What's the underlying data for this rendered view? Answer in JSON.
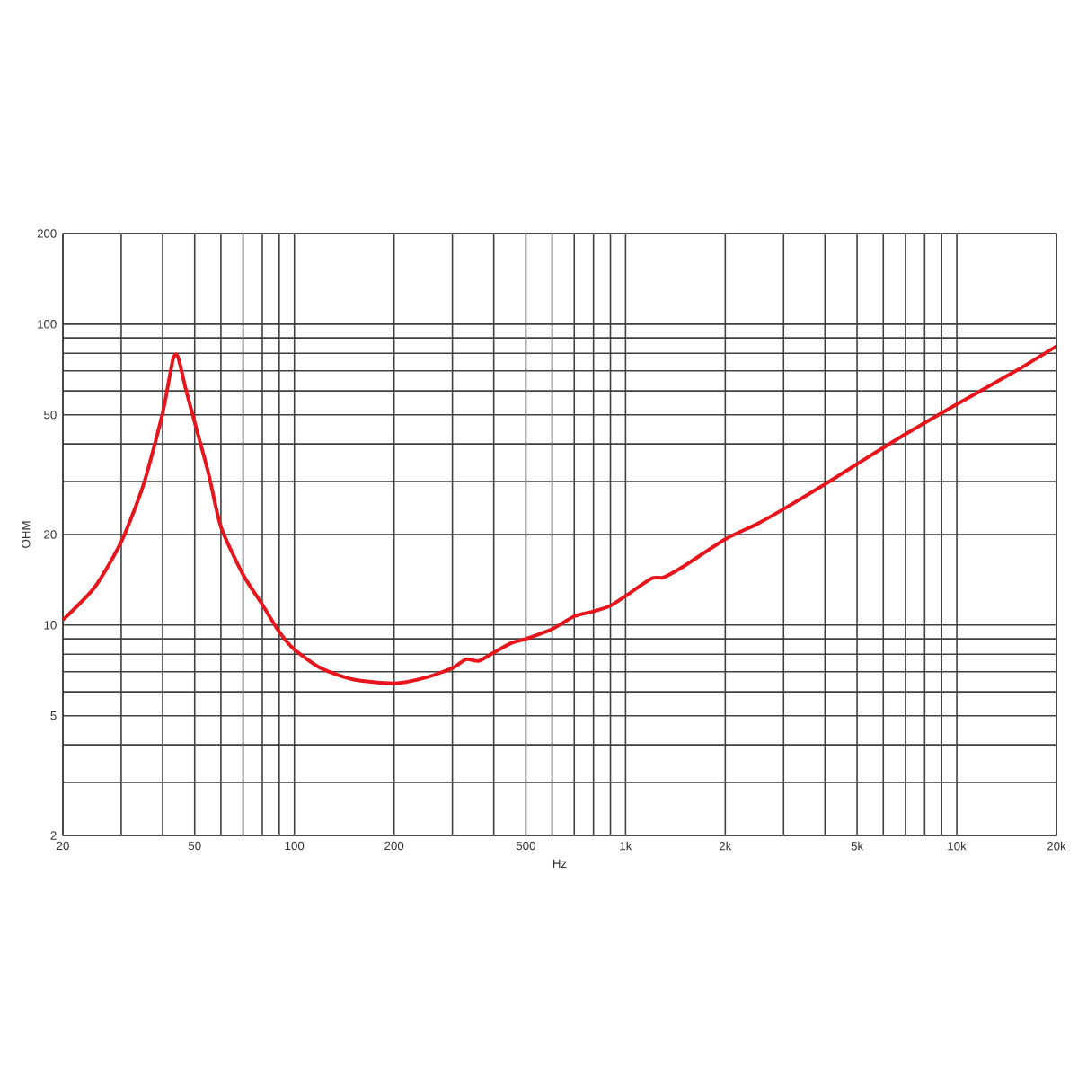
{
  "chart_data": {
    "type": "line",
    "xlabel": "Hz",
    "ylabel": "OHM",
    "log": "xy",
    "grid": true,
    "marker": "none",
    "line_style": "solid",
    "xlim": [
      20,
      20000
    ],
    "ylim": [
      2,
      200
    ],
    "xticks": [
      20,
      {
        "value": 30,
        "label": null
      },
      {
        "value": 40,
        "label": null
      },
      50,
      {
        "value": 60,
        "label": null
      },
      {
        "value": 70,
        "label": null
      },
      {
        "value": 80,
        "label": null
      },
      {
        "value": 90,
        "label": null
      },
      100,
      200,
      {
        "value": 300,
        "label": null
      },
      {
        "value": 400,
        "label": null
      },
      500,
      {
        "value": 600,
        "label": null
      },
      {
        "value": 700,
        "label": null
      },
      {
        "value": 800,
        "label": null
      },
      {
        "value": 900,
        "label": null
      },
      {
        "value": 1000,
        "label": "1k"
      },
      {
        "value": 2000,
        "label": "2k"
      },
      {
        "value": 3000,
        "label": null
      },
      {
        "value": 4000,
        "label": null
      },
      {
        "value": 5000,
        "label": "5k"
      },
      {
        "value": 6000,
        "label": null
      },
      {
        "value": 7000,
        "label": null
      },
      {
        "value": 8000,
        "label": null
      },
      {
        "value": 9000,
        "label": null
      },
      {
        "value": 10000,
        "label": "10k"
      },
      {
        "value": 20000,
        "label": "20k"
      }
    ],
    "yticks": [
      2,
      {
        "value": 3,
        "label": null
      },
      {
        "value": 4,
        "label": null
      },
      5,
      {
        "value": 6,
        "label": null
      },
      {
        "value": 7,
        "label": null
      },
      {
        "value": 8,
        "label": null
      },
      {
        "value": 9,
        "label": null
      },
      10,
      20,
      {
        "value": 30,
        "label": null
      },
      {
        "value": 40,
        "label": null
      },
      50,
      {
        "value": 60,
        "label": null
      },
      {
        "value": 70,
        "label": null
      },
      {
        "value": 80,
        "label": null
      },
      {
        "value": 90,
        "label": null
      },
      100,
      200
    ],
    "x": [
      20,
      25,
      30,
      35,
      40,
      43,
      44.5,
      47,
      50,
      55,
      60,
      70,
      80,
      90,
      100,
      120,
      150,
      200,
      250,
      300,
      330,
      360,
      400,
      450,
      500,
      600,
      700,
      800,
      900,
      1000,
      1200,
      1300,
      1500,
      2000,
      2500,
      3000,
      4000,
      5000,
      7000,
      10000,
      15000,
      20000
    ],
    "series": [
      {
        "color": "#e8141c",
        "values": [
          10.4,
          13.4,
          18.9,
          29.2,
          50.6,
          76.4,
          78,
          60.8,
          47.2,
          32.0,
          21.2,
          14.7,
          11.7,
          9.5,
          8.3,
          7.2,
          6.6,
          6.4,
          6.7,
          7.2,
          7.7,
          7.6,
          8.1,
          8.7,
          9.0,
          9.7,
          10.7,
          11.1,
          11.6,
          12.5,
          14.3,
          14.4,
          15.7,
          19.3,
          21.7,
          24.3,
          29.4,
          34.3,
          43.1,
          54.2,
          69.7,
          84.5
        ]
      }
    ]
  }
}
